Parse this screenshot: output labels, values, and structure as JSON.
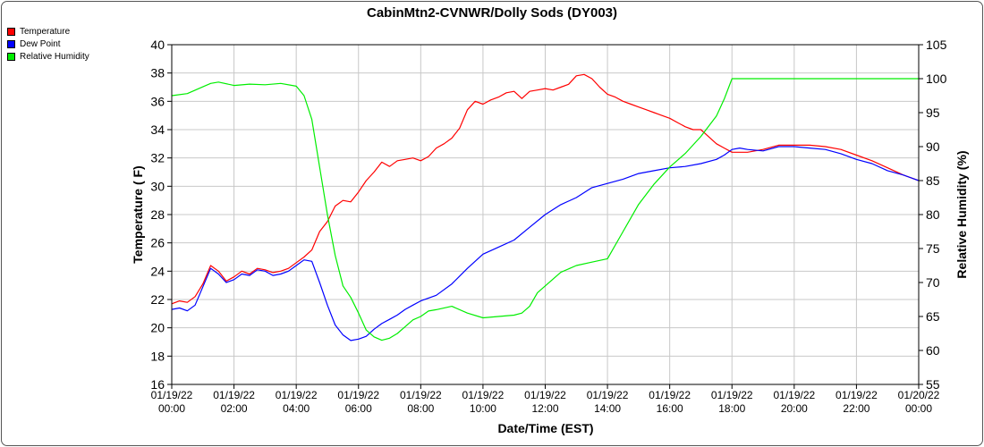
{
  "chart_data": {
    "type": "line",
    "title": "CabinMtn2-CVNWR/Dolly Sods (DY003)",
    "xlabel": "Date/Time (EST)",
    "ylabel_left": "Temperature ( F)",
    "ylabel_right": "Relative Humidity (%)",
    "ylim_left": [
      16,
      40
    ],
    "ylim_right": [
      55,
      105
    ],
    "yticks_left": [
      "16",
      "18",
      "20",
      "22",
      "24",
      "26",
      "28",
      "30",
      "32",
      "34",
      "36",
      "38",
      "40"
    ],
    "yticks_right": [
      "55",
      "60",
      "65",
      "70",
      "75",
      "80",
      "85",
      "90",
      "95",
      "100",
      "105"
    ],
    "xlim_hours": [
      0,
      24
    ],
    "xticks": [
      {
        "date": "01/19/22",
        "time": "00:00"
      },
      {
        "date": "01/19/22",
        "time": "02:00"
      },
      {
        "date": "01/19/22",
        "time": "04:00"
      },
      {
        "date": "01/19/22",
        "time": "06:00"
      },
      {
        "date": "01/19/22",
        "time": "08:00"
      },
      {
        "date": "01/19/22",
        "time": "10:00"
      },
      {
        "date": "01/19/22",
        "time": "12:00"
      },
      {
        "date": "01/19/22",
        "time": "14:00"
      },
      {
        "date": "01/19/22",
        "time": "16:00"
      },
      {
        "date": "01/19/22",
        "time": "18:00"
      },
      {
        "date": "01/19/22",
        "time": "20:00"
      },
      {
        "date": "01/19/22",
        "time": "22:00"
      },
      {
        "date": "01/20/22",
        "time": "00:00"
      }
    ],
    "grid": true,
    "legend_position": "top-left",
    "series": [
      {
        "name": "Temperature",
        "color": "#ff0000",
        "axis": "left",
        "x": [
          0,
          0.25,
          0.5,
          0.75,
          1.0,
          1.25,
          1.5,
          1.75,
          2.0,
          2.25,
          2.5,
          2.75,
          3.0,
          3.25,
          3.5,
          3.75,
          4.0,
          4.25,
          4.5,
          4.75,
          5.0,
          5.25,
          5.5,
          5.75,
          6.0,
          6.25,
          6.5,
          6.75,
          7.0,
          7.25,
          7.5,
          7.75,
          8.0,
          8.25,
          8.5,
          8.75,
          9.0,
          9.25,
          9.5,
          9.75,
          10.0,
          10.25,
          10.5,
          10.75,
          11.0,
          11.25,
          11.5,
          11.75,
          12.0,
          12.25,
          12.5,
          12.75,
          13.0,
          13.25,
          13.5,
          13.75,
          14.0,
          14.25,
          14.5,
          14.75,
          15.0,
          15.25,
          15.5,
          15.75,
          16.0,
          16.25,
          16.5,
          16.75,
          17.0,
          17.25,
          17.5,
          17.75,
          18.0,
          18.5,
          19.0,
          19.5,
          20.0,
          20.5,
          21.0,
          21.5,
          22.0,
          22.5,
          23.0,
          23.5,
          24.0
        ],
        "y": [
          21.7,
          21.9,
          21.8,
          22.2,
          23.1,
          24.4,
          24.0,
          23.3,
          23.6,
          24.0,
          23.8,
          24.2,
          24.1,
          23.9,
          24.0,
          24.2,
          24.6,
          25.0,
          25.5,
          26.8,
          27.5,
          28.6,
          29.0,
          28.9,
          29.6,
          30.4,
          31.0,
          31.7,
          31.4,
          31.8,
          31.9,
          32.0,
          31.8,
          32.1,
          32.7,
          33.0,
          33.4,
          34.1,
          35.4,
          36.0,
          35.8,
          36.1,
          36.3,
          36.6,
          36.7,
          36.2,
          36.7,
          36.8,
          36.9,
          36.8,
          37.0,
          37.2,
          37.8,
          37.9,
          37.6,
          37.0,
          36.5,
          36.3,
          36.0,
          35.8,
          35.6,
          35.4,
          35.2,
          35.0,
          34.8,
          34.5,
          34.2,
          34.0,
          34.0,
          33.5,
          33.0,
          32.7,
          32.4,
          32.4,
          32.6,
          32.9,
          32.9,
          32.9,
          32.8,
          32.6,
          32.2,
          31.8,
          31.3,
          30.8,
          30.4
        ]
      },
      {
        "name": "Dew Point",
        "color": "#0000ff",
        "axis": "left",
        "x": [
          0,
          0.25,
          0.5,
          0.75,
          1.0,
          1.25,
          1.5,
          1.75,
          2.0,
          2.25,
          2.5,
          2.75,
          3.0,
          3.25,
          3.5,
          3.75,
          4.0,
          4.25,
          4.5,
          4.75,
          5.0,
          5.25,
          5.5,
          5.75,
          6.0,
          6.25,
          6.5,
          6.75,
          7.0,
          7.25,
          7.5,
          7.75,
          8.0,
          8.5,
          9.0,
          9.5,
          10.0,
          10.5,
          11.0,
          11.5,
          12.0,
          12.5,
          13.0,
          13.5,
          14.0,
          14.5,
          15.0,
          15.5,
          16.0,
          16.5,
          17.0,
          17.5,
          17.75,
          18.0,
          18.25,
          18.5,
          19.0,
          19.5,
          20.0,
          20.5,
          21.0,
          21.5,
          22.0,
          22.5,
          23.0,
          23.5,
          24.0
        ],
        "y": [
          21.3,
          21.4,
          21.2,
          21.6,
          22.9,
          24.2,
          23.8,
          23.2,
          23.4,
          23.8,
          23.7,
          24.1,
          24.0,
          23.7,
          23.8,
          24.0,
          24.4,
          24.8,
          24.7,
          23.2,
          21.6,
          20.2,
          19.5,
          19.1,
          19.2,
          19.4,
          19.9,
          20.3,
          20.6,
          20.9,
          21.3,
          21.6,
          21.9,
          22.3,
          23.1,
          24.2,
          25.2,
          25.7,
          26.2,
          27.1,
          28.0,
          28.7,
          29.2,
          29.9,
          30.2,
          30.5,
          30.9,
          31.1,
          31.3,
          31.4,
          31.6,
          31.9,
          32.2,
          32.6,
          32.7,
          32.6,
          32.5,
          32.8,
          32.8,
          32.7,
          32.6,
          32.3,
          31.9,
          31.6,
          31.1,
          30.8,
          30.4
        ]
      },
      {
        "name": "Relative Humidity",
        "color": "#00ee00",
        "axis": "right",
        "x": [
          0,
          0.5,
          1.0,
          1.25,
          1.5,
          2.0,
          2.5,
          3.0,
          3.5,
          4.0,
          4.25,
          4.5,
          4.75,
          5.0,
          5.25,
          5.5,
          5.75,
          6.0,
          6.25,
          6.5,
          6.75,
          7.0,
          7.25,
          7.5,
          7.75,
          8.0,
          8.25,
          8.5,
          9.0,
          9.5,
          10.0,
          10.5,
          11.0,
          11.25,
          11.5,
          11.75,
          12.0,
          12.5,
          13.0,
          13.5,
          14.0,
          14.5,
          15.0,
          15.5,
          16.0,
          16.5,
          17.0,
          17.5,
          17.75,
          18.0,
          18.25,
          18.5,
          19.0,
          20.0,
          21.0,
          22.0,
          23.0,
          24.0
        ],
        "y": [
          97.5,
          97.8,
          98.8,
          99.3,
          99.5,
          99.0,
          99.2,
          99.1,
          99.3,
          98.9,
          97.5,
          94.0,
          87.0,
          80.0,
          74.0,
          69.5,
          67.8,
          65.5,
          63.0,
          62.0,
          61.5,
          61.8,
          62.5,
          63.5,
          64.5,
          65.0,
          65.8,
          66.0,
          66.5,
          65.5,
          64.8,
          65.0,
          65.2,
          65.5,
          66.5,
          68.5,
          69.5,
          71.5,
          72.5,
          73.0,
          73.5,
          77.5,
          81.5,
          84.5,
          87.0,
          89.0,
          91.5,
          94.5,
          97.0,
          100.0,
          100.0,
          100.0,
          100.0,
          100.0,
          100.0,
          100.0,
          100.0,
          100.0
        ]
      }
    ]
  }
}
